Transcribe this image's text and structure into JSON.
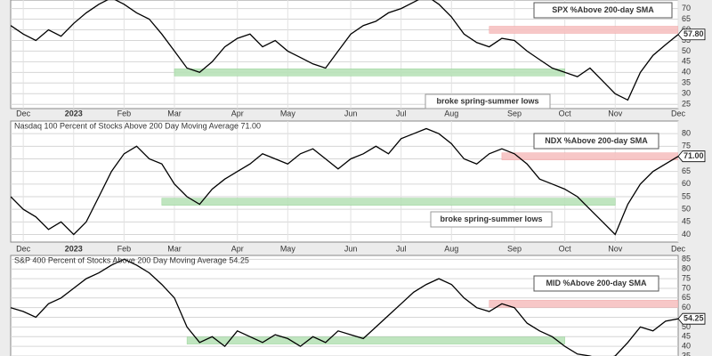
{
  "chart_data": [
    {
      "type": "line",
      "title": null,
      "annotation": "SPX %Above 200-day SMA",
      "note": "broke spring-summer lows",
      "categories": [
        null,
        "Dec",
        null,
        null,
        null,
        "2023",
        null,
        null,
        null,
        "Feb",
        null,
        null,
        null,
        "Mar",
        null,
        null,
        null,
        null,
        "Apr",
        null,
        null,
        null,
        "May",
        null,
        null,
        null,
        null,
        "Jun",
        null,
        null,
        null,
        "Jul",
        null,
        null,
        null,
        "Aug",
        null,
        null,
        null,
        null,
        "Sep",
        null,
        null,
        null,
        "Oct",
        null,
        null,
        null,
        "Nov",
        null,
        null,
        null,
        null,
        "Dec"
      ],
      "values": [
        62,
        58,
        55,
        60,
        57,
        63,
        68,
        72,
        75,
        72,
        68,
        65,
        58,
        50,
        42,
        40,
        45,
        52,
        56,
        58,
        52,
        55,
        50,
        47,
        44,
        42,
        50,
        58,
        62,
        64,
        68,
        70,
        73,
        76,
        72,
        66,
        58,
        54,
        52,
        56,
        55,
        50,
        46,
        42,
        40,
        38,
        42,
        36,
        30,
        27,
        40,
        48,
        53,
        57.8
      ],
      "value_labels": [
        null,
        null,
        null,
        null,
        null,
        null,
        null,
        null,
        null,
        null,
        null,
        null,
        null,
        null,
        null,
        null,
        null,
        null,
        null,
        null,
        null,
        null,
        null,
        null,
        null,
        null,
        null,
        null,
        null,
        null,
        null,
        null,
        null,
        null,
        null,
        null,
        null,
        null,
        null,
        null,
        null,
        null,
        null,
        null,
        null,
        null,
        null,
        null,
        null,
        null,
        null,
        null,
        null,
        "57.80"
      ],
      "color": "#000000",
      "ylim": [
        23,
        74
      ],
      "yticks": [
        25,
        30,
        35,
        40,
        45,
        50,
        55,
        60,
        65,
        70
      ],
      "grid": true,
      "bands": [
        {
          "y": 40,
          "start": 13,
          "end": 44,
          "color": "#b9e3b9"
        },
        {
          "y": 60,
          "start": 38,
          "end": 53,
          "color": "#f7c2c2"
        }
      ]
    },
    {
      "type": "line",
      "title": "Nasdaq 100 Percent of Stocks Above 200 Day Moving Average 71.00",
      "annotation": "NDX %Above 200-day SMA",
      "note": "broke spring-summer lows",
      "categories": [
        null,
        "Dec",
        null,
        null,
        null,
        "2023",
        null,
        null,
        null,
        "Feb",
        null,
        null,
        null,
        "Mar",
        null,
        null,
        null,
        null,
        "Apr",
        null,
        null,
        null,
        "May",
        null,
        null,
        null,
        null,
        "Jun",
        null,
        null,
        null,
        "Jul",
        null,
        null,
        null,
        "Aug",
        null,
        null,
        null,
        null,
        "Sep",
        null,
        null,
        null,
        "Oct",
        null,
        null,
        null,
        "Nov",
        null,
        null,
        null,
        null,
        "Dec"
      ],
      "values": [
        55,
        50,
        47,
        42,
        45,
        40,
        45,
        55,
        65,
        72,
        75,
        70,
        68,
        60,
        55,
        52,
        58,
        62,
        65,
        68,
        72,
        70,
        68,
        72,
        74,
        70,
        66,
        70,
        72,
        75,
        72,
        78,
        80,
        82,
        80,
        76,
        70,
        68,
        72,
        74,
        72,
        68,
        62,
        60,
        58,
        55,
        50,
        45,
        40,
        52,
        60,
        65,
        68,
        71
      ],
      "value_labels": [
        null,
        null,
        null,
        null,
        null,
        null,
        null,
        null,
        null,
        null,
        null,
        null,
        null,
        null,
        null,
        null,
        null,
        null,
        null,
        null,
        null,
        null,
        null,
        null,
        null,
        null,
        null,
        null,
        null,
        null,
        null,
        null,
        null,
        null,
        null,
        null,
        null,
        null,
        null,
        null,
        null,
        null,
        null,
        null,
        null,
        null,
        null,
        null,
        null,
        null,
        null,
        null,
        null,
        "71.00"
      ],
      "color": "#000000",
      "ylim": [
        37,
        85
      ],
      "yticks": [
        40,
        45,
        50,
        55,
        60,
        65,
        70,
        75,
        80
      ],
      "grid": true,
      "bands": [
        {
          "y": 53,
          "start": 12,
          "end": 48,
          "color": "#b9e3b9"
        },
        {
          "y": 71,
          "start": 39,
          "end": 53,
          "color": "#f7c2c2"
        }
      ]
    },
    {
      "type": "line",
      "title": "S&P 400 Percent of Stocks Above 200 Day Moving Average 54.25",
      "annotation": "MID %Above 200-day SMA",
      "note": null,
      "categories": null,
      "values": [
        60,
        58,
        55,
        62,
        65,
        70,
        75,
        78,
        82,
        85,
        82,
        78,
        72,
        65,
        50,
        42,
        45,
        40,
        48,
        45,
        42,
        46,
        44,
        40,
        45,
        42,
        48,
        46,
        44,
        50,
        56,
        62,
        68,
        72,
        75,
        72,
        65,
        60,
        58,
        62,
        60,
        52,
        48,
        45,
        40,
        36,
        35,
        33,
        35,
        42,
        50,
        48,
        53,
        54.25
      ],
      "value_labels": [
        null,
        null,
        null,
        null,
        null,
        null,
        null,
        null,
        null,
        null,
        null,
        null,
        null,
        null,
        null,
        null,
        null,
        null,
        null,
        null,
        null,
        null,
        null,
        null,
        null,
        null,
        null,
        null,
        null,
        null,
        null,
        null,
        null,
        null,
        null,
        null,
        null,
        null,
        null,
        null,
        null,
        null,
        null,
        null,
        null,
        null,
        null,
        null,
        null,
        null,
        null,
        null,
        null,
        "54.25"
      ],
      "color": "#000000",
      "ylim": [
        35,
        87
      ],
      "yticks": [
        35,
        40,
        45,
        50,
        55,
        60,
        65,
        70,
        75,
        80,
        85
      ],
      "grid": true,
      "bands": [
        {
          "y": 43,
          "start": 14,
          "end": 44,
          "color": "#b9e3b9"
        },
        {
          "y": 62,
          "start": 38,
          "end": 53,
          "color": "#f7c2c2"
        }
      ]
    }
  ]
}
